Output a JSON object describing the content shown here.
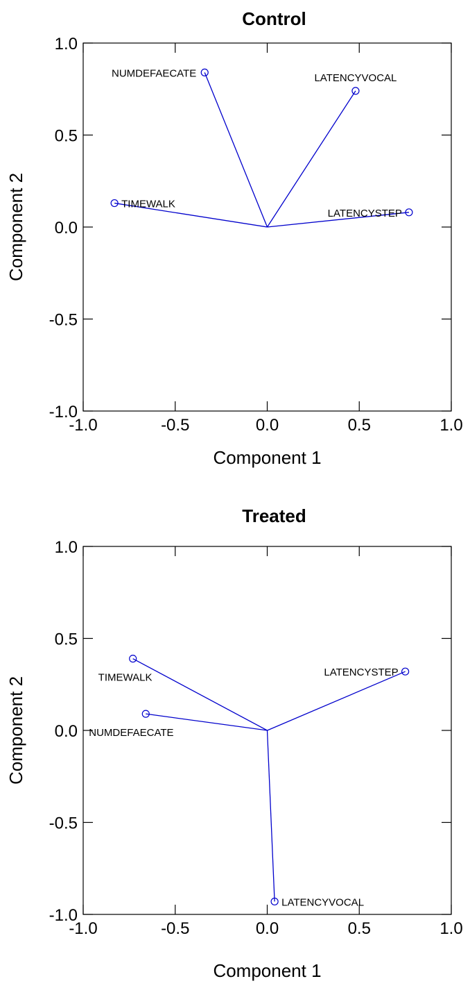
{
  "chart_data": [
    {
      "type": "scatter",
      "title": "Control",
      "xlabel": "Component 1",
      "ylabel": "Component 2",
      "xlim": [
        -1.0,
        1.0
      ],
      "ylim": [
        -1.0,
        1.0
      ],
      "xticks": [
        "-1.0",
        "-0.5",
        "0.0",
        "0.5",
        "1.0"
      ],
      "yticks": [
        "-1.0",
        "-0.5",
        "0.0",
        "0.5",
        "1.0"
      ],
      "line_color": "#0000cc",
      "grid": false,
      "points": [
        {
          "label": "NUMDEFAECATE",
          "x": -0.34,
          "y": 0.84
        },
        {
          "label": "LATENCYVOCAL",
          "x": 0.48,
          "y": 0.74
        },
        {
          "label": "TIMEWALK",
          "x": -0.83,
          "y": 0.13
        },
        {
          "label": "LATENCYSTEP",
          "x": 0.77,
          "y": 0.08
        }
      ]
    },
    {
      "type": "scatter",
      "title": "Treated",
      "xlabel": "Component 1",
      "ylabel": "Component 2",
      "xlim": [
        -1.0,
        1.0
      ],
      "ylim": [
        -1.0,
        1.0
      ],
      "xticks": [
        "-1.0",
        "-0.5",
        "0.0",
        "0.5",
        "1.0"
      ],
      "yticks": [
        "-1.0",
        "-0.5",
        "0.0",
        "0.5",
        "1.0"
      ],
      "line_color": "#0000cc",
      "grid": false,
      "points": [
        {
          "label": "TIMEWALK",
          "x": -0.73,
          "y": 0.39
        },
        {
          "label": "NUMDEFAECATE",
          "x": -0.66,
          "y": 0.09
        },
        {
          "label": "LATENCYSTEP",
          "x": 0.75,
          "y": 0.32
        },
        {
          "label": "LATENCYVOCAL",
          "x": 0.04,
          "y": -0.93
        }
      ]
    }
  ]
}
